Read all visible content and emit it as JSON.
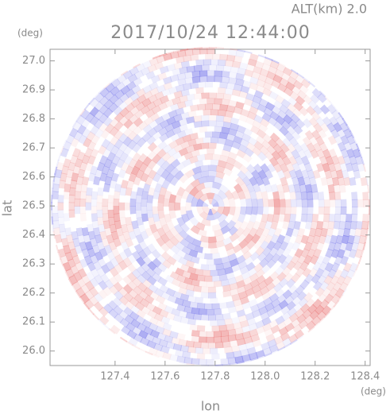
{
  "chart_data": {
    "type": "radar-ppi",
    "title": "2017/10/24 12:44:00",
    "subtitle": "ALT(km) 2.0",
    "x_label": "lon",
    "y_label": "lat",
    "x_unit": "(deg)",
    "y_unit": "(deg)",
    "xlim": [
      127.14,
      128.42
    ],
    "ylim": [
      25.95,
      27.04
    ],
    "xticks": [
      127.4,
      127.6,
      127.8,
      {
        "value": 128,
        "label": "128.0"
      },
      128.2,
      128.4
    ],
    "yticks": [
      {
        "value": 26,
        "label": "26.0"
      },
      26.1,
      26.2,
      26.3,
      26.4,
      26.5,
      26.6,
      26.7,
      26.8,
      26.9,
      {
        "value": 27,
        "label": "27.0"
      }
    ],
    "colors": [
      "#e86a6a",
      "#6a6ae8"
    ]
  }
}
